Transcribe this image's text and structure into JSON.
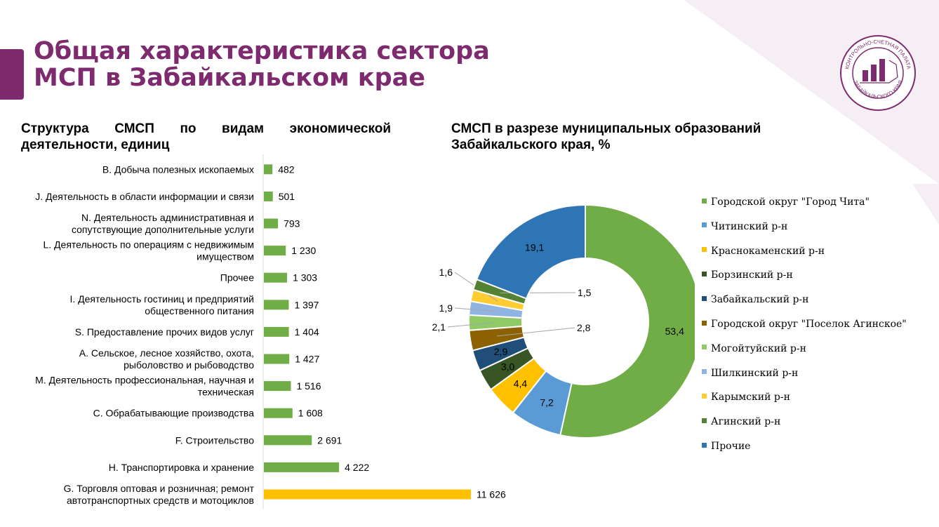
{
  "slide": {
    "title_line1": "Общая характеристика сектора",
    "title_line2": "МСП в Забайкальском крае",
    "logo_text_top": "КОНТРОЛЬНО-СЧЕТНАЯ ПАЛАТА",
    "logo_text_bottom": "ЗАБАЙКАЛЬСКОГО КРАЯ"
  },
  "colors": {
    "brand": "#7d2a6e",
    "bar_default": "#70ad47",
    "bar_highlight": "#ffc000"
  },
  "chart_data": [
    {
      "type": "bar",
      "orientation": "horizontal",
      "title_line1": "Структура СМСП по видам экономической",
      "title_line2": "деятельности, единиц",
      "categories": [
        [
          "B. Добыча полезных ископаемых"
        ],
        [
          "J. Деятельность в области информации и связи"
        ],
        [
          "N. Деятельность административная и",
          "сопутствующие дополнительные услуги"
        ],
        [
          "L. Деятельность по операциям с недвижимым",
          "имуществом"
        ],
        [
          "Прочее"
        ],
        [
          "I. Деятельность гостиниц и предприятий",
          "общественного питания"
        ],
        [
          "S. Предоставление прочих видов услуг"
        ],
        [
          "A. Сельское, лесное хозяйство, охота,",
          "рыболовство и рыбоводство"
        ],
        [
          "M. Деятельность профессиональная, научная и",
          "техническая"
        ],
        [
          "C. Обрабатывающие производства"
        ],
        [
          "F. Строительство"
        ],
        [
          "H. Транспортировка и хранение"
        ],
        [
          "G. Торговля оптовая и розничная; ремонт",
          "автотранспортных средств и мотоциклов"
        ]
      ],
      "values": [
        482,
        501,
        793,
        1230,
        1303,
        1397,
        1404,
        1427,
        1516,
        1608,
        2691,
        4222,
        11626
      ],
      "value_labels": [
        "482",
        "501",
        "793",
        "1 230",
        "1 303",
        "1 397",
        "1 404",
        "1 427",
        "1 516",
        "1 608",
        "2 691",
        "4 222",
        "11 626"
      ],
      "highlight_index": 12,
      "grid": false
    },
    {
      "type": "pie",
      "variant": "donut",
      "title_line1": "СМСП в разрезе муниципальных образований",
      "title_line2": "Забайкальского края, %",
      "legend_position": "right",
      "slices": [
        {
          "name": "Городской округ \"Город Чита\"",
          "value": 53.4,
          "label": "53,4",
          "color": "#70ad47"
        },
        {
          "name": "Читинский р-н",
          "value": 7.2,
          "label": "7,2",
          "color": "#5b9bd5"
        },
        {
          "name": "Краснокаменский р-н",
          "value": 4.4,
          "label": "4,4",
          "color": "#ffc000"
        },
        {
          "name": "Борзинский р-н",
          "value": 3.0,
          "label": "3,0",
          "color": "#375623"
        },
        {
          "name": "Забайкальский р-н",
          "value": 2.9,
          "label": "2,9",
          "color": "#1f4e79"
        },
        {
          "name": "Городской округ \"Поселок Агинское\"",
          "value": 2.8,
          "label": "2,8",
          "color": "#8c6100"
        },
        {
          "name": "Могойтуйский р-н",
          "value": 2.1,
          "label": "2,1",
          "color": "#8fca67"
        },
        {
          "name": "Шилкинский р-н",
          "value": 1.9,
          "label": "1,9",
          "color": "#8fb4e3"
        },
        {
          "name": "Карымский р-н",
          "value": 1.6,
          "label": "1,6",
          "color": "#ffcd33"
        },
        {
          "name": "Агинский р-н",
          "value": 1.5,
          "label": "1,5",
          "color": "#548235"
        },
        {
          "name": "Прочие",
          "value": 19.1,
          "label": "19,1",
          "color": "#2e75b6"
        }
      ]
    }
  ]
}
